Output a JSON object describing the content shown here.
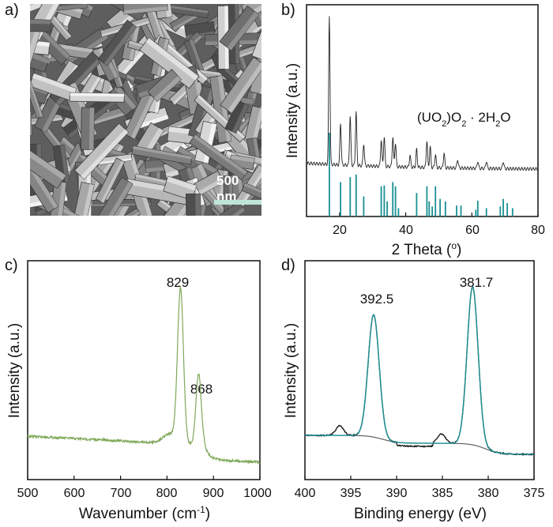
{
  "panels": {
    "a": "a)",
    "b": "b)",
    "c": "c)",
    "d": "d)"
  },
  "sem": {
    "scale_bar_label": "500 nm"
  },
  "colors": {
    "teal": "#1a8f93",
    "green": "#7fa85a",
    "dark": "#222222",
    "gray": "#555555"
  },
  "chart_data": [
    {
      "panel": "b",
      "type": "line",
      "xlabel": "2 Theta (o)",
      "ylabel": "Intensity (a.u.)",
      "annotation": "(UO2)O2 · 2H2O",
      "xlim": [
        10,
        80
      ],
      "xticks": [
        20,
        40,
        60,
        80
      ],
      "pattern_peaks": [
        {
          "x": 16.9,
          "h": 1.0
        },
        {
          "x": 20.3,
          "h": 0.28
        },
        {
          "x": 23.2,
          "h": 0.33
        },
        {
          "x": 25.0,
          "h": 0.36
        },
        {
          "x": 27.3,
          "h": 0.15
        },
        {
          "x": 32.6,
          "h": 0.18
        },
        {
          "x": 33.5,
          "h": 0.2
        },
        {
          "x": 36.1,
          "h": 0.2
        },
        {
          "x": 36.9,
          "h": 0.16
        },
        {
          "x": 41.3,
          "h": 0.08
        },
        {
          "x": 43.3,
          "h": 0.12
        },
        {
          "x": 46.4,
          "h": 0.18
        },
        {
          "x": 47.4,
          "h": 0.14
        },
        {
          "x": 49.0,
          "h": 0.09
        },
        {
          "x": 51.6,
          "h": 0.1
        },
        {
          "x": 55.7,
          "h": 0.06
        },
        {
          "x": 61.8,
          "h": 0.05
        },
        {
          "x": 64.4,
          "h": 0.05
        },
        {
          "x": 69.5,
          "h": 0.05
        }
      ],
      "reference_sticks": [
        {
          "x": 16.9,
          "h": 1.0
        },
        {
          "x": 20.3,
          "h": 0.41
        },
        {
          "x": 23.2,
          "h": 0.47
        },
        {
          "x": 25.0,
          "h": 0.5
        },
        {
          "x": 27.3,
          "h": 0.24
        },
        {
          "x": 32.6,
          "h": 0.36
        },
        {
          "x": 33.5,
          "h": 0.37
        },
        {
          "x": 34.4,
          "h": 0.18
        },
        {
          "x": 36.1,
          "h": 0.41
        },
        {
          "x": 36.9,
          "h": 0.36
        },
        {
          "x": 37.8,
          "h": 0.1
        },
        {
          "x": 43.3,
          "h": 0.28
        },
        {
          "x": 46.4,
          "h": 0.36
        },
        {
          "x": 47.1,
          "h": 0.18
        },
        {
          "x": 48.0,
          "h": 0.12
        },
        {
          "x": 49.0,
          "h": 0.36
        },
        {
          "x": 50.4,
          "h": 0.21
        },
        {
          "x": 52.0,
          "h": 0.18
        },
        {
          "x": 55.4,
          "h": 0.13
        },
        {
          "x": 56.7,
          "h": 0.13
        },
        {
          "x": 61.2,
          "h": 0.08
        },
        {
          "x": 61.8,
          "h": 0.19
        },
        {
          "x": 64.4,
          "h": 0.1
        },
        {
          "x": 68.6,
          "h": 0.12
        },
        {
          "x": 69.5,
          "h": 0.21
        },
        {
          "x": 70.7,
          "h": 0.16
        },
        {
          "x": 72.3,
          "h": 0.1
        }
      ]
    },
    {
      "panel": "c",
      "type": "line",
      "xlabel": "Wavenumber (cm-1)",
      "ylabel": "Intensity (a.u.)",
      "xlim": [
        500,
        1000
      ],
      "xticks": [
        500,
        600,
        700,
        800,
        900,
        1000
      ],
      "peaks": [
        {
          "x": 829,
          "label": "829"
        },
        {
          "x": 868,
          "label": "868"
        }
      ]
    },
    {
      "panel": "d",
      "type": "line",
      "xlabel": "Binding energy (eV)",
      "ylabel": "Intensity (a.u.)",
      "xlim": [
        400,
        375
      ],
      "xticks": [
        400,
        395,
        390,
        385,
        380,
        375
      ],
      "peaks": [
        {
          "x": 392.5,
          "label": "392.5"
        },
        {
          "x": 381.7,
          "label": "381.7"
        }
      ]
    }
  ]
}
